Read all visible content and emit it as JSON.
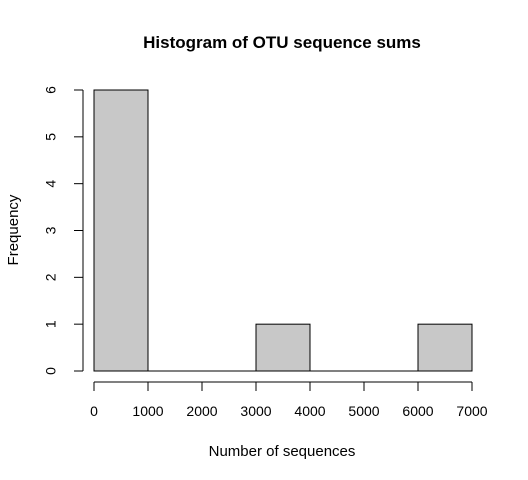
{
  "chart_data": {
    "type": "bar",
    "title": "Histogram of OTU sequence sums",
    "xlabel": "Number of sequences",
    "ylabel": "Frequency",
    "categories": [
      "0-1000",
      "1000-2000",
      "2000-3000",
      "3000-4000",
      "4000-5000",
      "5000-6000",
      "6000-7000"
    ],
    "bin_edges": [
      0,
      1000,
      2000,
      3000,
      4000,
      5000,
      6000,
      7000
    ],
    "values": [
      6,
      0,
      0,
      1,
      0,
      0,
      1
    ],
    "xlim": [
      0,
      7000
    ],
    "ylim": [
      0,
      6
    ],
    "x_ticks": [
      0,
      1000,
      2000,
      3000,
      4000,
      5000,
      6000,
      7000
    ],
    "y_ticks": [
      0,
      1,
      2,
      3,
      4,
      5,
      6
    ],
    "bar_fill": "#c8c8c8",
    "bar_stroke": "#000000",
    "grid": false,
    "legend": false
  }
}
